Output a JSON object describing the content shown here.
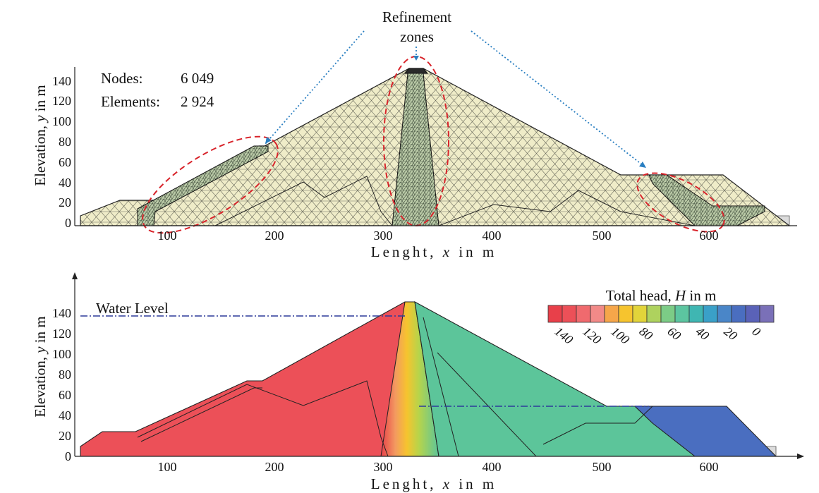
{
  "annotation": {
    "line1": "Refinement",
    "line2": "zones"
  },
  "mesh_plot": {
    "nodes_label": "Nodes:",
    "nodes_value": "6 049",
    "elements_label": "Elements:",
    "elements_value": "2 924"
  },
  "head_plot": {
    "water_level_label": "Water Level",
    "legend_title": "Total head, ",
    "legend_title_var": "H",
    "legend_title_unit": " in m",
    "legend_colors": [
      "#e8404a",
      "#ec5058",
      "#f06a6e",
      "#f28a88",
      "#f6a64a",
      "#f6c42e",
      "#e2d43a",
      "#aed25e",
      "#7ccc86",
      "#5cc5a0",
      "#3fb6b2",
      "#3aa0c8",
      "#4a86c8",
      "#4a6ec0",
      "#5a62b8",
      "#7a70b8"
    ],
    "legend_ticks": [
      "140",
      "120",
      "100",
      "80",
      "60",
      "40",
      "20",
      "0"
    ]
  },
  "axes": {
    "y_label_prefix": "Elevation, ",
    "y_label_var": "y",
    "y_label_suffix": " in m",
    "x_label_prefix": "Lenght, ",
    "x_label_var": "x",
    "x_label_suffix": " in m",
    "y_ticks": [
      "0",
      "20",
      "40",
      "60",
      "80",
      "100",
      "120",
      "140"
    ],
    "x_ticks": [
      "100",
      "200",
      "300",
      "400",
      "500",
      "600"
    ]
  },
  "chart_data": [
    {
      "type": "mesh",
      "xlabel": "Lenght, x in m",
      "ylabel": "Elevation, y in m",
      "xlim": [
        20,
        670
      ],
      "ylim": [
        0,
        150
      ],
      "dam_profile": [
        [
          20,
          8
        ],
        [
          55,
          23
        ],
        [
          90,
          23
        ],
        [
          178,
          73
        ],
        [
          185,
          73
        ],
        [
          320,
          149
        ],
        [
          330,
          149
        ],
        [
          505,
          47
        ],
        [
          605,
          47
        ],
        [
          665,
          0
        ]
      ],
      "core_x": [
        303,
        345
      ],
      "nodes": 6049,
      "elements": 2924,
      "refinement_zones": 3
    },
    {
      "type": "heatmap",
      "xlabel": "Lenght, x in m",
      "ylabel": "Elevation, y in m",
      "xlim": [
        20,
        670
      ],
      "ylim": [
        0,
        150
      ],
      "upstream_water_level": 135,
      "downstream_water_level": 47,
      "colorbar_label": "Total head, H in m",
      "colorbar_ticks": [
        140,
        120,
        100,
        80,
        60,
        40,
        20,
        0
      ]
    }
  ]
}
